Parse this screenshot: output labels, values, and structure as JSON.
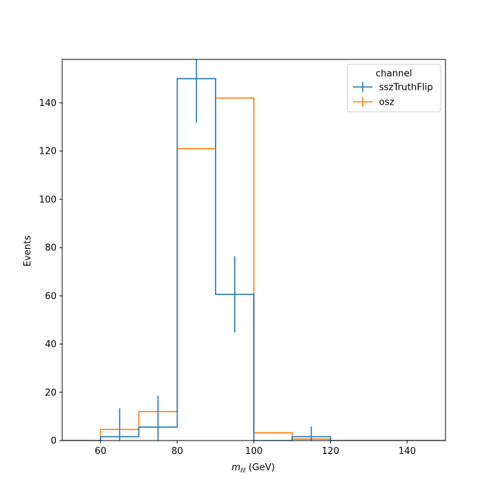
{
  "chart_data": {
    "type": "histogram",
    "x_label_main": "m",
    "x_label_sub": "ℓℓ",
    "x_label_unit": " (GeV)",
    "ylabel": "Events",
    "xlim": [
      50,
      150
    ],
    "ylim": [
      0,
      158
    ],
    "xticks": [
      60,
      80,
      100,
      120,
      140
    ],
    "yticks": [
      0,
      20,
      40,
      60,
      80,
      100,
      120,
      140
    ],
    "bin_edges": [
      50,
      60,
      70,
      80,
      90,
      100,
      110,
      120,
      130,
      140,
      150
    ],
    "legend": {
      "title": "channel",
      "position": "upper-right"
    },
    "series": [
      {
        "name": "sszTruthFlip",
        "color": "#1f77b4",
        "values": [
          0,
          1.6,
          5.6,
          150,
          60.6,
          0,
          1.6,
          0,
          0,
          0
        ],
        "errors": [
          null,
          11.8,
          13,
          18.2,
          15.8,
          null,
          4.2,
          null,
          null,
          null
        ]
      },
      {
        "name": "osz",
        "color": "#ff7f0e",
        "values": [
          0,
          4.6,
          12,
          121,
          142,
          3.2,
          0.6,
          0,
          0,
          0
        ]
      }
    ]
  }
}
